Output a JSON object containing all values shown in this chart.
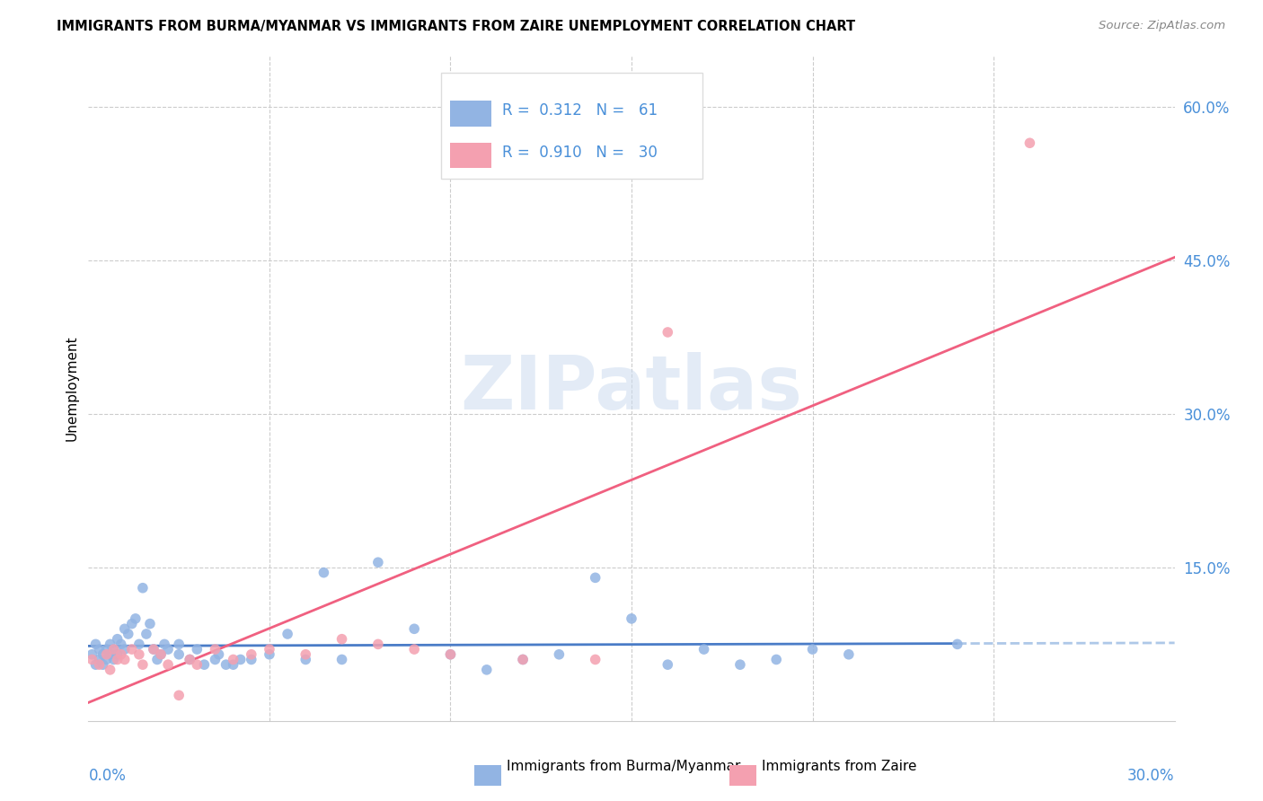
{
  "title": "IMMIGRANTS FROM BURMA/MYANMAR VS IMMIGRANTS FROM ZAIRE UNEMPLOYMENT CORRELATION CHART",
  "source": "Source: ZipAtlas.com",
  "ylabel": "Unemployment",
  "color_burma": "#92b4e3",
  "color_zaire": "#f4a0b0",
  "color_burma_line": "#4a7cc7",
  "color_zaire_line": "#f06080",
  "color_burma_line_ext": "#aec8e8",
  "color_grid": "#cccccc",
  "color_axis_text": "#4a90d9",
  "xlim": [
    0,
    0.3
  ],
  "ylim": [
    0,
    0.65
  ],
  "yticks": [
    0.0,
    0.15,
    0.3,
    0.45,
    0.6
  ],
  "ytick_labels": [
    "",
    "15.0%",
    "30.0%",
    "45.0%",
    "60.0%"
  ],
  "xtick_labels": [
    "0.0%",
    "",
    "",
    "",
    "",
    "",
    "30.0%"
  ],
  "xticks": [
    0.0,
    0.05,
    0.1,
    0.15,
    0.2,
    0.25,
    0.3
  ],
  "legend_r1": "R = 0.312",
  "legend_n1": "N =  61",
  "legend_r2": "R = 0.910",
  "legend_n2": "N =  30",
  "legend_label1": "Immigrants from Burma/Myanmar",
  "legend_label2": "Immigrants from Zaire",
  "watermark": "ZIPatlas",
  "burma_x": [
    0.001,
    0.002,
    0.002,
    0.003,
    0.003,
    0.004,
    0.004,
    0.005,
    0.005,
    0.006,
    0.006,
    0.007,
    0.007,
    0.008,
    0.008,
    0.009,
    0.01,
    0.01,
    0.011,
    0.012,
    0.013,
    0.014,
    0.015,
    0.016,
    0.017,
    0.018,
    0.019,
    0.02,
    0.021,
    0.022,
    0.025,
    0.025,
    0.028,
    0.03,
    0.032,
    0.035,
    0.036,
    0.038,
    0.04,
    0.042,
    0.045,
    0.05,
    0.055,
    0.06,
    0.065,
    0.07,
    0.08,
    0.09,
    0.1,
    0.11,
    0.12,
    0.13,
    0.14,
    0.15,
    0.16,
    0.17,
    0.18,
    0.19,
    0.2,
    0.21,
    0.24
  ],
  "burma_y": [
    0.065,
    0.075,
    0.055,
    0.06,
    0.07,
    0.065,
    0.055,
    0.07,
    0.06,
    0.065,
    0.075,
    0.07,
    0.06,
    0.065,
    0.08,
    0.075,
    0.09,
    0.07,
    0.085,
    0.095,
    0.1,
    0.075,
    0.13,
    0.085,
    0.095,
    0.07,
    0.06,
    0.065,
    0.075,
    0.07,
    0.065,
    0.075,
    0.06,
    0.07,
    0.055,
    0.06,
    0.065,
    0.055,
    0.055,
    0.06,
    0.06,
    0.065,
    0.085,
    0.06,
    0.145,
    0.06,
    0.155,
    0.09,
    0.065,
    0.05,
    0.06,
    0.065,
    0.14,
    0.1,
    0.055,
    0.07,
    0.055,
    0.06,
    0.07,
    0.065,
    0.075
  ],
  "zaire_x": [
    0.001,
    0.003,
    0.005,
    0.006,
    0.007,
    0.008,
    0.009,
    0.01,
    0.012,
    0.014,
    0.015,
    0.018,
    0.02,
    0.022,
    0.025,
    0.028,
    0.03,
    0.035,
    0.04,
    0.045,
    0.05,
    0.06,
    0.07,
    0.08,
    0.09,
    0.1,
    0.12,
    0.14,
    0.16,
    0.26
  ],
  "zaire_y": [
    0.06,
    0.055,
    0.065,
    0.05,
    0.07,
    0.06,
    0.065,
    0.06,
    0.07,
    0.065,
    0.055,
    0.07,
    0.065,
    0.055,
    0.025,
    0.06,
    0.055,
    0.07,
    0.06,
    0.065,
    0.07,
    0.065,
    0.08,
    0.075,
    0.07,
    0.065,
    0.06,
    0.06,
    0.38,
    0.565
  ]
}
